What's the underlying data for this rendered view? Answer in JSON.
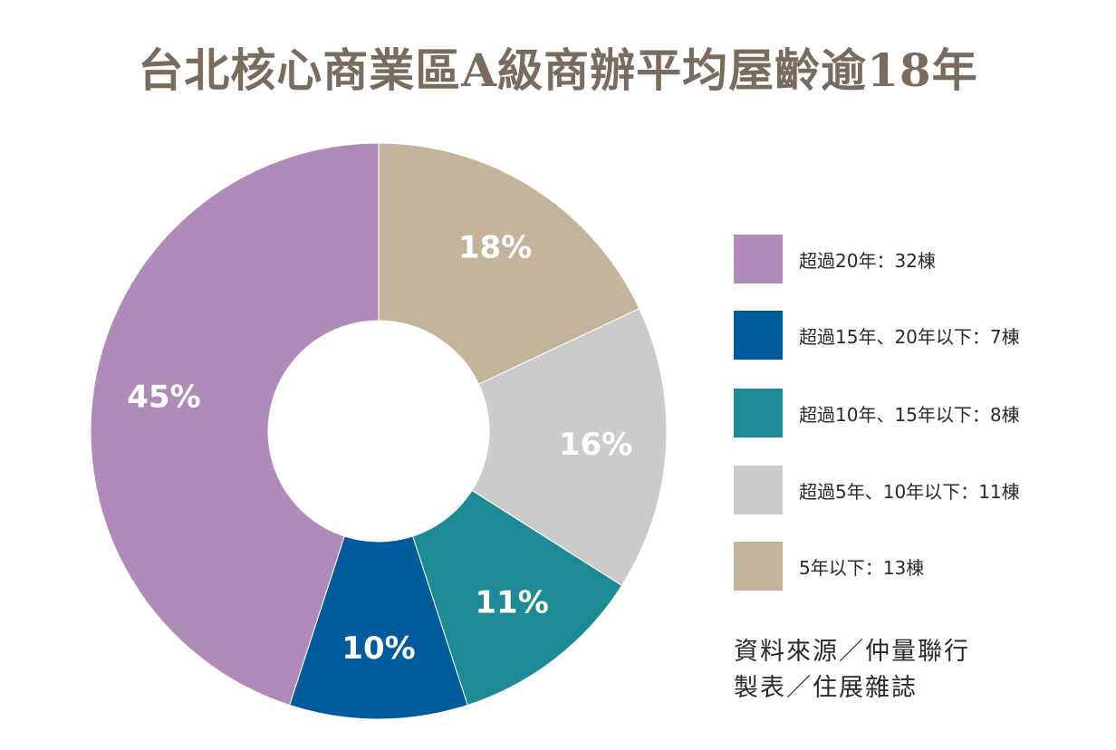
{
  "chart_data": {
    "type": "pie",
    "title": "台北核心商業區A級商辦平均屋齡逾18年",
    "slices": [
      {
        "label": "45%",
        "value": 45,
        "color": "#b08bb9"
      },
      {
        "label": "10%",
        "value": 10,
        "color": "#005b9a"
      },
      {
        "label": "11%",
        "value": 11,
        "color": "#1e8a93"
      },
      {
        "label": "16%",
        "value": 16,
        "color": "#cccbcb"
      },
      {
        "label": "18%",
        "value": 18,
        "color": "#c3b39b"
      }
    ],
    "legend": [
      {
        "text": "超過20年：32棟",
        "color": "#b08bb9"
      },
      {
        "text": "超過15年、20年以下：7棟",
        "color": "#005b9a"
      },
      {
        "text": "超過10年、15年以下：8棟",
        "color": "#1e8a93"
      },
      {
        "text": "超過5年、10年以下：11棟",
        "color": "#cccbcb"
      },
      {
        "text": "5年以下：13棟",
        "color": "#c3b39b"
      }
    ],
    "legend_placement": "right"
  },
  "source": {
    "line1": "資料來源／仲量聯行",
    "line2": "製表／住展雜誌"
  }
}
